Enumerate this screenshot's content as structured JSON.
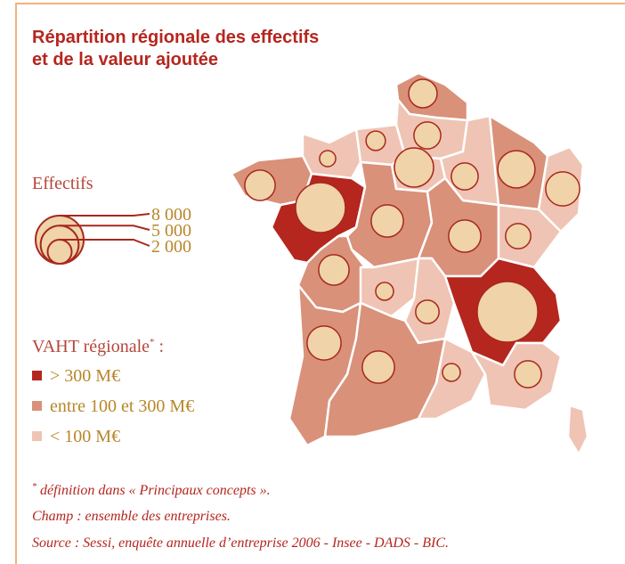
{
  "title": [
    "Répartition régionale des effectifs",
    "et de la valeur ajoutée"
  ],
  "size_legend": {
    "title": "Effectifs",
    "values": [
      {
        "value": 8000,
        "label": "8 000"
      },
      {
        "value": 5000,
        "label": "5 000"
      },
      {
        "value": 2000,
        "label": "2 000"
      }
    ]
  },
  "class_legend": {
    "title": "VAHT régionale",
    "title_mark": "*",
    "title_suffix": " :",
    "classes": [
      {
        "label": "> 300 M€",
        "color": "#b5261e"
      },
      {
        "label": "entre 100 et 300 M€",
        "color": "#d9917a"
      },
      {
        "label": "< 100 M€",
        "color": "#efc4b4"
      }
    ]
  },
  "regions": [
    {
      "class": 1,
      "effectifs": 2800
    },
    {
      "class": 2,
      "effectifs": 2500
    },
    {
      "class": 2,
      "effectifs": 1300
    },
    {
      "class": 2,
      "effectifs": 900
    },
    {
      "class": 1,
      "effectifs": 3200
    },
    {
      "class": 0,
      "effectifs": 8600
    },
    {
      "class": 2,
      "effectifs": 5300
    },
    {
      "class": 2,
      "effectifs": 2500
    },
    {
      "class": 1,
      "effectifs": 4800
    },
    {
      "class": 2,
      "effectifs": 4000
    },
    {
      "class": 1,
      "effectifs": 3600
    },
    {
      "class": 1,
      "effectifs": 3600
    },
    {
      "class": 2,
      "effectifs": 2200
    },
    {
      "class": 1,
      "effectifs": 3200
    },
    {
      "class": 2,
      "effectifs": 1100
    },
    {
      "class": 2,
      "effectifs": 1900
    },
    {
      "class": 0,
      "effectifs": 12700
    },
    {
      "class": 1,
      "effectifs": 4000
    },
    {
      "class": 1,
      "effectifs": 3600
    },
    {
      "class": 2,
      "effectifs": 1100
    },
    {
      "class": 2,
      "effectifs": 2500
    },
    {
      "class": 2,
      "effectifs": null
    }
  ],
  "notes": {
    "mark": "*",
    "definition": " définition dans « Principaux concepts ».",
    "scope": "Champ : ensemble des entreprises.",
    "source": "Source : Sessi, enquête annuelle d’entreprise 2006 - Insee - DADS - BIC."
  }
}
